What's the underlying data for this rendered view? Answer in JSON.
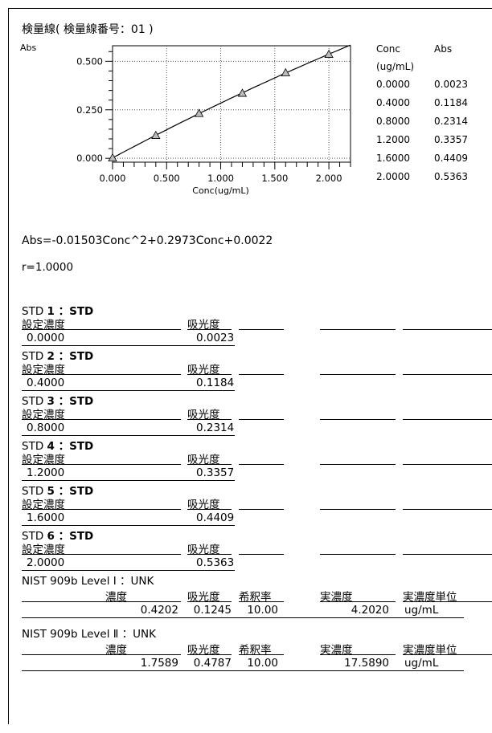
{
  "title": "検量線( 検量線番号：01 )",
  "chart_data": {
    "type": "scatter",
    "ylabel": "Abs",
    "xlabel": "Conc(ug/mL)",
    "x": [
      0.0,
      0.4,
      0.8,
      1.2,
      1.6,
      2.0
    ],
    "y": [
      0.0023,
      0.1184,
      0.2314,
      0.3357,
      0.4409,
      0.5363
    ],
    "xlim": [
      0,
      2.2
    ],
    "ylim": [
      -0.02,
      0.58
    ],
    "xticks": [
      "0.000",
      "0.500",
      "1.000",
      "1.500",
      "2.000"
    ],
    "yticks": [
      "0.000",
      "0.250",
      "0.500"
    ],
    "fit": {
      "a": -0.01503,
      "b": 0.2973,
      "c": 0.0022
    },
    "grid": true,
    "marker": "triangle"
  },
  "data_table": {
    "headers": [
      "Conc",
      "Abs"
    ],
    "unit": "(ug/mL)",
    "rows": [
      [
        "0.0000",
        "0.0023"
      ],
      [
        "0.4000",
        "0.1184"
      ],
      [
        "0.8000",
        "0.2314"
      ],
      [
        "1.2000",
        "0.3357"
      ],
      [
        "1.6000",
        "0.4409"
      ],
      [
        "2.0000",
        "0.5363"
      ]
    ]
  },
  "equation": "Abs=-0.01503Conc^2+0.2973Conc+0.0022",
  "r": "r=1.0000",
  "std_col1": "設定濃度",
  "std_col2": "吸光度",
  "standards": [
    {
      "pre": "STD ",
      "num": "1",
      "suffix": "：STD",
      "conc": "0.0000",
      "abs": "0.0023"
    },
    {
      "pre": "STD ",
      "num": "2",
      "suffix": "：STD",
      "conc": "0.4000",
      "abs": "0.1184"
    },
    {
      "pre": "STD ",
      "num": "3",
      "suffix": "：STD",
      "conc": "0.8000",
      "abs": "0.2314"
    },
    {
      "pre": "STD ",
      "num": "4",
      "suffix": "：STD",
      "conc": "1.2000",
      "abs": "0.3357"
    },
    {
      "pre": "STD ",
      "num": "5",
      "suffix": "：STD",
      "conc": "1.6000",
      "abs": "0.4409"
    },
    {
      "pre": "STD ",
      "num": "6",
      "suffix": "：STD",
      "conc": "2.0000",
      "abs": "0.5363"
    }
  ],
  "unk_headers": [
    "濃度",
    "吸光度",
    "希釈率",
    "実濃度",
    "実濃度単位"
  ],
  "unknowns": [
    {
      "label": "NIST 909b Level Ⅰ ：UNK",
      "conc": "0.4202",
      "abs": "0.1245",
      "dilution": "10.00",
      "actual": "4.2020",
      "unit": "ug/mL"
    },
    {
      "label": "NIST 909b Level Ⅱ ：UNK",
      "conc": "1.7589",
      "abs": "0.4787",
      "dilution": "10.00",
      "actual": "17.5890",
      "unit": "ug/mL"
    }
  ]
}
